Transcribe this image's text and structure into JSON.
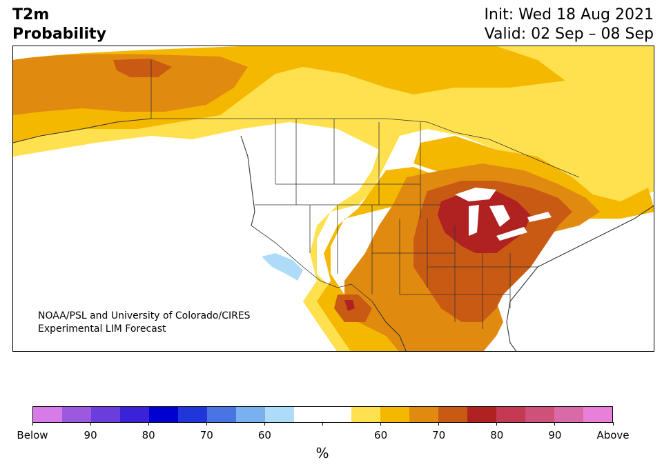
{
  "header": {
    "title_line1": "T2m",
    "title_line2": "Probability",
    "init_text": "Init: Wed 18 Aug 2021",
    "valid_text": "Valid: 02 Sep – 08 Sep"
  },
  "credit": {
    "line1": "NOAA/PSL and University of Colorado/CIRES",
    "line2": "Experimental LIM Forecast"
  },
  "colorbar": {
    "colors": [
      "#d67be8",
      "#9b59e0",
      "#6a3ddc",
      "#3a22d8",
      "#0000d0",
      "#2036d8",
      "#4a74e4",
      "#78b0f0",
      "#aedcf8",
      "#ffffff",
      "#ffffff",
      "#ffe14f",
      "#f4b800",
      "#e08a10",
      "#c95a14",
      "#b02222",
      "#c43a52",
      "#cf5078",
      "#d96aa8",
      "#e87fd8"
    ],
    "labels": [
      "Below",
      "90",
      "80",
      "70",
      "60",
      "",
      "60",
      "70",
      "80",
      "90",
      "Above"
    ],
    "unit": "%"
  },
  "map": {
    "colors": {
      "p55": "#ffe14f",
      "p60": "#f4b800",
      "p70": "#e08a10",
      "p75": "#c95a14",
      "p80": "#b02222",
      "below60": "#aedcf8",
      "border": "#333333"
    }
  }
}
